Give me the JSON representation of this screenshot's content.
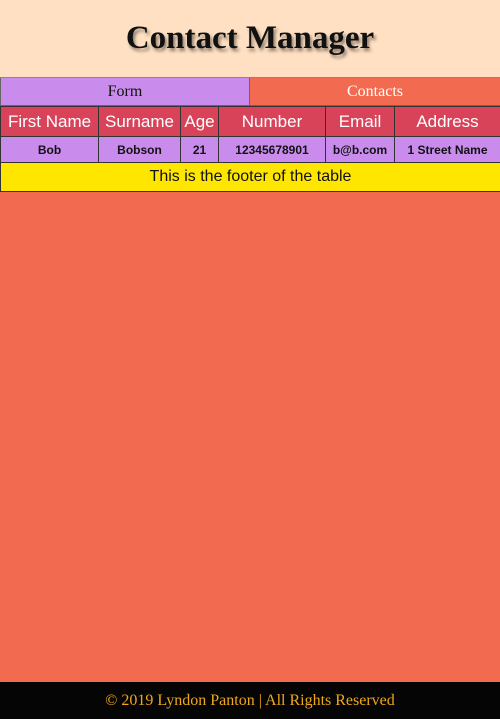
{
  "header": {
    "title": "Contact Manager"
  },
  "tabs": [
    {
      "label": "Form"
    },
    {
      "label": "Contacts"
    }
  ],
  "table": {
    "columns": [
      "First Name",
      "Surname",
      "Age",
      "Number",
      "Email",
      "Address"
    ],
    "rows": [
      [
        "Bob",
        "Bobson",
        "21",
        "12345678901",
        "b@b.com",
        "1 Street Name"
      ]
    ],
    "footer": "This is the footer of the table"
  },
  "page_footer": {
    "text": "© 2019 Lyndon Panton  |  All Rights Reserved"
  },
  "colors": {
    "background": "#f26b50",
    "header_bg": "#ffe0c2",
    "tab_form_bg": "#c98ced",
    "table_header_bg": "#d9435a",
    "table_footer_bg": "#ffe600",
    "footer_text": "#f0a71a"
  }
}
